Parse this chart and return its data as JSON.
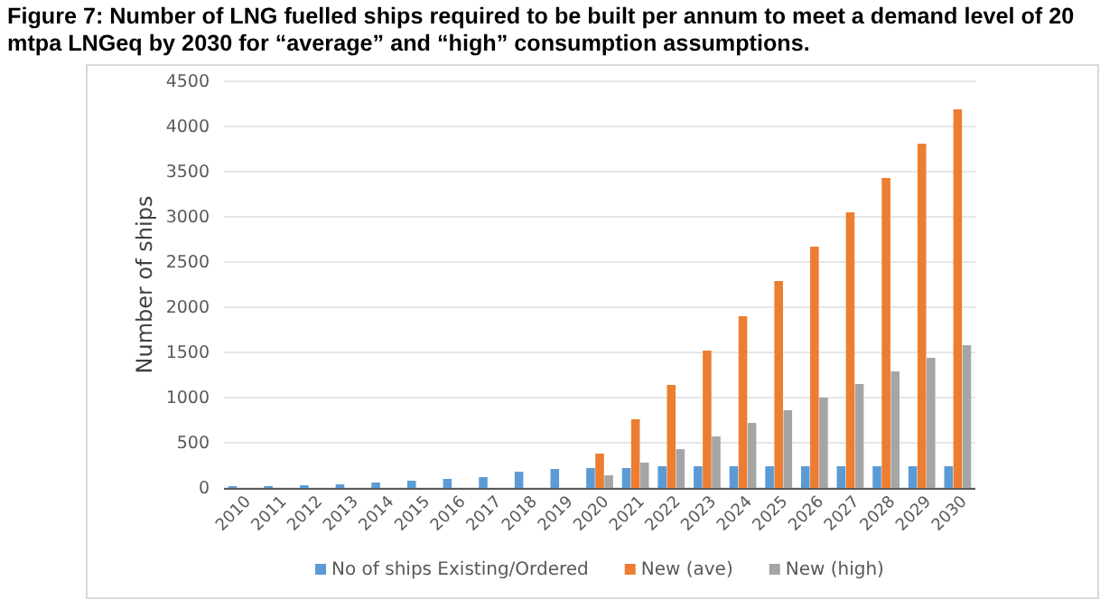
{
  "chart_data": {
    "type": "bar",
    "title": "Figure 7: Number of LNG fuelled ships required to be built per annum to meet a demand level of 20 mtpa LNGeq by 2030 for “average” and “high” consumption assumptions.",
    "ylabel": "Number of ships",
    "categories": [
      "2010",
      "2011",
      "2012",
      "2013",
      "2014",
      "2015",
      "2016",
      "2017",
      "2018",
      "2019",
      "2020",
      "2021",
      "2022",
      "2023",
      "2024",
      "2025",
      "2026",
      "2027",
      "2028",
      "2029",
      "2030"
    ],
    "series": [
      {
        "name": "No of ships Existing/Ordered",
        "color": "#5b9bd5",
        "values": [
          20,
          20,
          30,
          40,
          60,
          80,
          100,
          120,
          180,
          210,
          220,
          220,
          240,
          240,
          240,
          240,
          240,
          240,
          240,
          240,
          240
        ]
      },
      {
        "name": "New (ave)",
        "color": "#ed7d31",
        "values": [
          null,
          null,
          null,
          null,
          null,
          null,
          null,
          null,
          null,
          null,
          380,
          760,
          1140,
          1520,
          1900,
          2290,
          2670,
          3050,
          3430,
          3810,
          4190
        ]
      },
      {
        "name": "New (high)",
        "color": "#a5a5a5",
        "values": [
          null,
          null,
          null,
          null,
          null,
          null,
          null,
          null,
          null,
          null,
          140,
          280,
          430,
          570,
          720,
          860,
          1000,
          1150,
          1290,
          1440,
          1580
        ]
      }
    ],
    "ylim": [
      0,
      4500
    ],
    "yticks": [
      0,
      500,
      1000,
      1500,
      2000,
      2500,
      3000,
      3500,
      4000,
      4500
    ],
    "grid": "y",
    "legend": "bottom"
  }
}
